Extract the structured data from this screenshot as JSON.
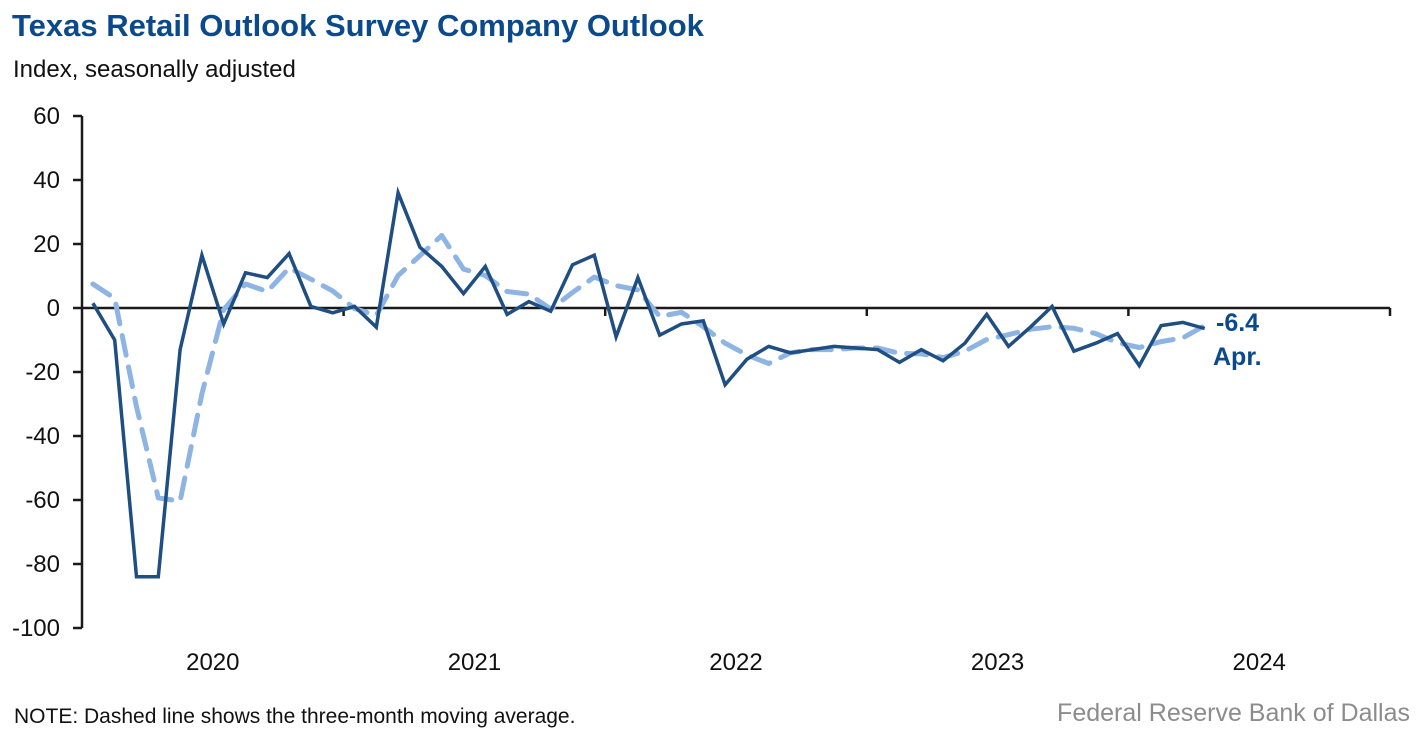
{
  "chart_data": {
    "type": "line",
    "title": "Texas Retail Outlook Survey Company Outlook",
    "subtitle": "Index, seasonally adjusted",
    "xlabel": "",
    "ylabel": "Index, seasonally adjusted",
    "ylim": [
      -100,
      60
    ],
    "yticks": [
      60,
      40,
      20,
      0,
      -20,
      -40,
      -60,
      -80,
      -100
    ],
    "ytick_labels": [
      "60",
      "40",
      "20",
      "0",
      "-20",
      "-40",
      "-60",
      "-80",
      "-100"
    ],
    "x_start": "2020-01",
    "x_end_axis": "2024-12",
    "xtick_labels": [
      "2020",
      "2021",
      "2022",
      "2023",
      "2024"
    ],
    "grid": false,
    "series": [
      {
        "name": "Company outlook index",
        "style": "solid",
        "color": "#1f4e82",
        "values": [
          1.5,
          -10,
          -84,
          -84,
          -13,
          16.5,
          -5,
          11,
          9.5,
          17,
          0.5,
          -1.5,
          0.5,
          -6,
          36,
          19,
          13,
          4.5,
          13,
          -2,
          2,
          -1,
          13.5,
          16.5,
          -9,
          9.5,
          -8.5,
          -5,
          -4,
          -24,
          -16,
          -12,
          -14,
          -13,
          -12,
          -12.5,
          -13,
          -17,
          -13,
          -16.5,
          -11,
          -2,
          -12,
          -6,
          0.5,
          -13.5,
          -11,
          -8,
          -18,
          -5.5,
          -4.5,
          -6.4
        ]
      },
      {
        "name": "Three-month moving average",
        "style": "dashed",
        "color": "#8db4e2",
        "derived_from": "3-month moving average of company outlook index"
      }
    ],
    "annotation": {
      "value": "-6.4",
      "label": "Apr."
    },
    "note": "NOTE: Dashed line shows the three-month moving average.",
    "source": "Federal Reserve Bank of Dallas"
  }
}
